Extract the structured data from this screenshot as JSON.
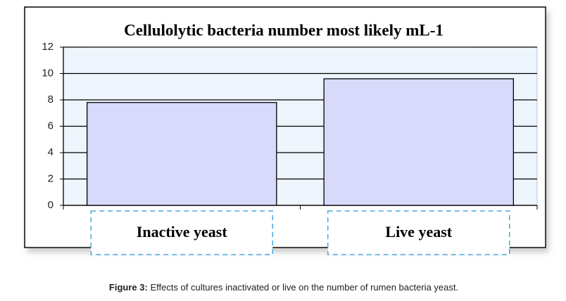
{
  "chart_data": {
    "type": "bar",
    "title": "Cellulolytic bacteria number most likely mL-1",
    "categories": [
      "Inactive yeast",
      "Live yeast"
    ],
    "values": [
      7.8,
      9.6
    ],
    "color": "#d9d9fb",
    "ylim": [
      0,
      12
    ],
    "yticks": [
      0,
      2,
      4,
      6,
      8,
      10,
      12
    ],
    "grid": true
  },
  "figure": {
    "label": "Figure 3:",
    "caption": "Effects of cultures inactivated or live on the number of rumen bacteria yeast."
  }
}
